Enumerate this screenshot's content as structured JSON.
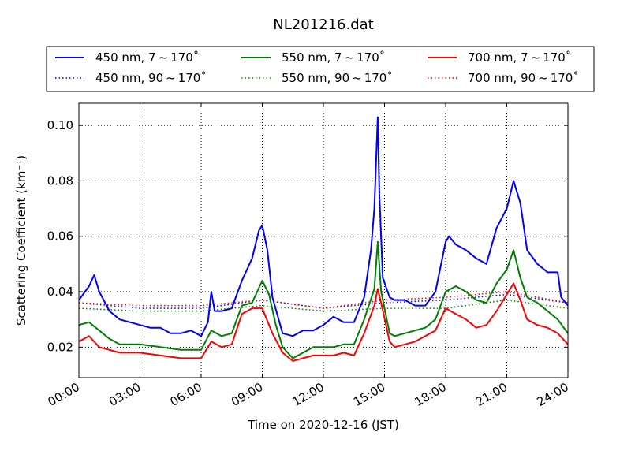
{
  "chart_data": {
    "type": "line",
    "title": "NL201216.dat",
    "xlabel": "Time on 2020-12-16 (JST)",
    "ylabel": "Scattering Coefficient (km⁻¹)",
    "xlim": [
      "00:00",
      "24:00"
    ],
    "ylim": [
      0.009,
      0.108
    ],
    "x_ticks": [
      "00:00",
      "03:00",
      "06:00",
      "09:00",
      "12:00",
      "15:00",
      "18:00",
      "21:00",
      "24:00"
    ],
    "y_ticks": [
      "0.02",
      "0.04",
      "0.06",
      "0.08",
      "0.10"
    ],
    "grid": true,
    "legend_position": "top, above plot",
    "series": [
      {
        "name": "450 nm, 7 ~ 170˚",
        "color": "#0000ff",
        "style": "solid",
        "x": [
          "00:00",
          "00:30",
          "00:45",
          "01:00",
          "01:30",
          "02:00",
          "02:30",
          "03:00",
          "03:30",
          "04:00",
          "04:30",
          "05:00",
          "05:30",
          "06:00",
          "06:20",
          "06:30",
          "06:40",
          "07:00",
          "07:30",
          "08:00",
          "08:30",
          "08:50",
          "09:00",
          "09:15",
          "09:30",
          "10:00",
          "10:30",
          "11:00",
          "11:30",
          "12:00",
          "12:30",
          "13:00",
          "13:30",
          "14:00",
          "14:20",
          "14:30",
          "14:40",
          "14:45",
          "14:55",
          "15:15",
          "15:30",
          "16:00",
          "16:30",
          "17:00",
          "17:30",
          "18:00",
          "18:10",
          "18:30",
          "19:00",
          "19:30",
          "20:00",
          "20:30",
          "21:00",
          "21:20",
          "21:40",
          "22:00",
          "22:30",
          "23:00",
          "23:30",
          "23:40",
          "24:00"
        ],
        "y": [
          0.037,
          0.042,
          0.046,
          0.04,
          0.033,
          0.03,
          0.029,
          0.028,
          0.027,
          0.027,
          0.025,
          0.025,
          0.026,
          0.024,
          0.029,
          0.04,
          0.033,
          0.033,
          0.034,
          0.044,
          0.052,
          0.062,
          0.064,
          0.055,
          0.038,
          0.025,
          0.024,
          0.026,
          0.026,
          0.028,
          0.031,
          0.029,
          0.029,
          0.038,
          0.055,
          0.07,
          0.103,
          0.075,
          0.045,
          0.038,
          0.037,
          0.037,
          0.035,
          0.035,
          0.04,
          0.058,
          0.06,
          0.057,
          0.055,
          0.052,
          0.05,
          0.063,
          0.07,
          0.08,
          0.072,
          0.055,
          0.05,
          0.047,
          0.047,
          0.038,
          0.035
        ]
      },
      {
        "name": "450 nm, 90 ~ 170˚",
        "color": "#0000ff",
        "style": "dotted",
        "x": [
          "00:00",
          "03:00",
          "06:00",
          "09:00",
          "12:00",
          "15:00",
          "18:00",
          "21:00",
          "24:00"
        ],
        "y": [
          0.036,
          0.034,
          0.034,
          0.037,
          0.034,
          0.036,
          0.037,
          0.039,
          0.036
        ]
      },
      {
        "name": "550 nm, 7 ~ 170˚",
        "color": "#008000",
        "style": "solid",
        "x": [
          "00:00",
          "00:30",
          "01:00",
          "01:30",
          "02:00",
          "03:00",
          "04:00",
          "05:00",
          "06:00",
          "06:30",
          "07:00",
          "07:30",
          "08:00",
          "08:30",
          "09:00",
          "09:20",
          "09:40",
          "10:00",
          "10:30",
          "11:00",
          "11:30",
          "12:00",
          "12:30",
          "13:00",
          "13:30",
          "14:00",
          "14:30",
          "14:40",
          "14:50",
          "15:15",
          "15:30",
          "16:00",
          "16:30",
          "17:00",
          "17:30",
          "18:00",
          "18:30",
          "19:00",
          "19:30",
          "20:00",
          "20:30",
          "21:00",
          "21:20",
          "21:40",
          "22:00",
          "22:30",
          "23:00",
          "23:30",
          "24:00"
        ],
        "y": [
          0.028,
          0.029,
          0.026,
          0.023,
          0.021,
          0.021,
          0.02,
          0.019,
          0.019,
          0.026,
          0.024,
          0.025,
          0.035,
          0.036,
          0.044,
          0.039,
          0.028,
          0.02,
          0.016,
          0.018,
          0.02,
          0.02,
          0.02,
          0.021,
          0.021,
          0.03,
          0.041,
          0.058,
          0.04,
          0.025,
          0.024,
          0.025,
          0.026,
          0.027,
          0.03,
          0.04,
          0.042,
          0.04,
          0.037,
          0.036,
          0.043,
          0.048,
          0.055,
          0.045,
          0.038,
          0.036,
          0.033,
          0.03,
          0.025
        ]
      },
      {
        "name": "550 nm, 90 ~ 170˚",
        "color": "#008000",
        "style": "dotted",
        "x": [
          "00:00",
          "03:00",
          "06:00",
          "09:00",
          "12:00",
          "15:00",
          "18:00",
          "21:00",
          "24:00"
        ],
        "y": [
          0.034,
          0.033,
          0.033,
          0.035,
          0.033,
          0.034,
          0.034,
          0.037,
          0.034
        ]
      },
      {
        "name": "700 nm, 7 ~ 170˚",
        "color": "#ff0000",
        "style": "solid",
        "x": [
          "00:00",
          "00:30",
          "01:00",
          "01:30",
          "02:00",
          "03:00",
          "04:00",
          "05:00",
          "06:00",
          "06:30",
          "07:00",
          "07:30",
          "08:00",
          "08:30",
          "09:00",
          "09:30",
          "10:00",
          "10:30",
          "11:00",
          "11:30",
          "12:00",
          "12:30",
          "13:00",
          "13:30",
          "14:00",
          "14:30",
          "14:40",
          "14:50",
          "15:15",
          "15:30",
          "16:00",
          "16:30",
          "17:00",
          "17:30",
          "18:00",
          "18:30",
          "19:00",
          "19:30",
          "20:00",
          "20:30",
          "21:00",
          "21:20",
          "21:40",
          "22:00",
          "22:30",
          "23:00",
          "23:30",
          "24:00"
        ],
        "y": [
          0.022,
          0.024,
          0.02,
          0.019,
          0.018,
          0.018,
          0.017,
          0.016,
          0.016,
          0.022,
          0.02,
          0.021,
          0.032,
          0.034,
          0.034,
          0.025,
          0.018,
          0.015,
          0.016,
          0.017,
          0.017,
          0.017,
          0.018,
          0.017,
          0.025,
          0.035,
          0.041,
          0.036,
          0.022,
          0.02,
          0.021,
          0.022,
          0.024,
          0.026,
          0.034,
          0.032,
          0.03,
          0.027,
          0.028,
          0.033,
          0.039,
          0.043,
          0.037,
          0.03,
          0.028,
          0.027,
          0.025,
          0.021
        ]
      },
      {
        "name": "700 nm, 90 ~ 170˚",
        "color": "#ff0000",
        "style": "dotted",
        "x": [
          "00:00",
          "03:00",
          "06:00",
          "09:00",
          "12:00",
          "15:00",
          "18:00",
          "21:00",
          "24:00"
        ],
        "y": [
          0.036,
          0.035,
          0.035,
          0.037,
          0.034,
          0.037,
          0.038,
          0.04,
          0.036
        ]
      }
    ]
  }
}
